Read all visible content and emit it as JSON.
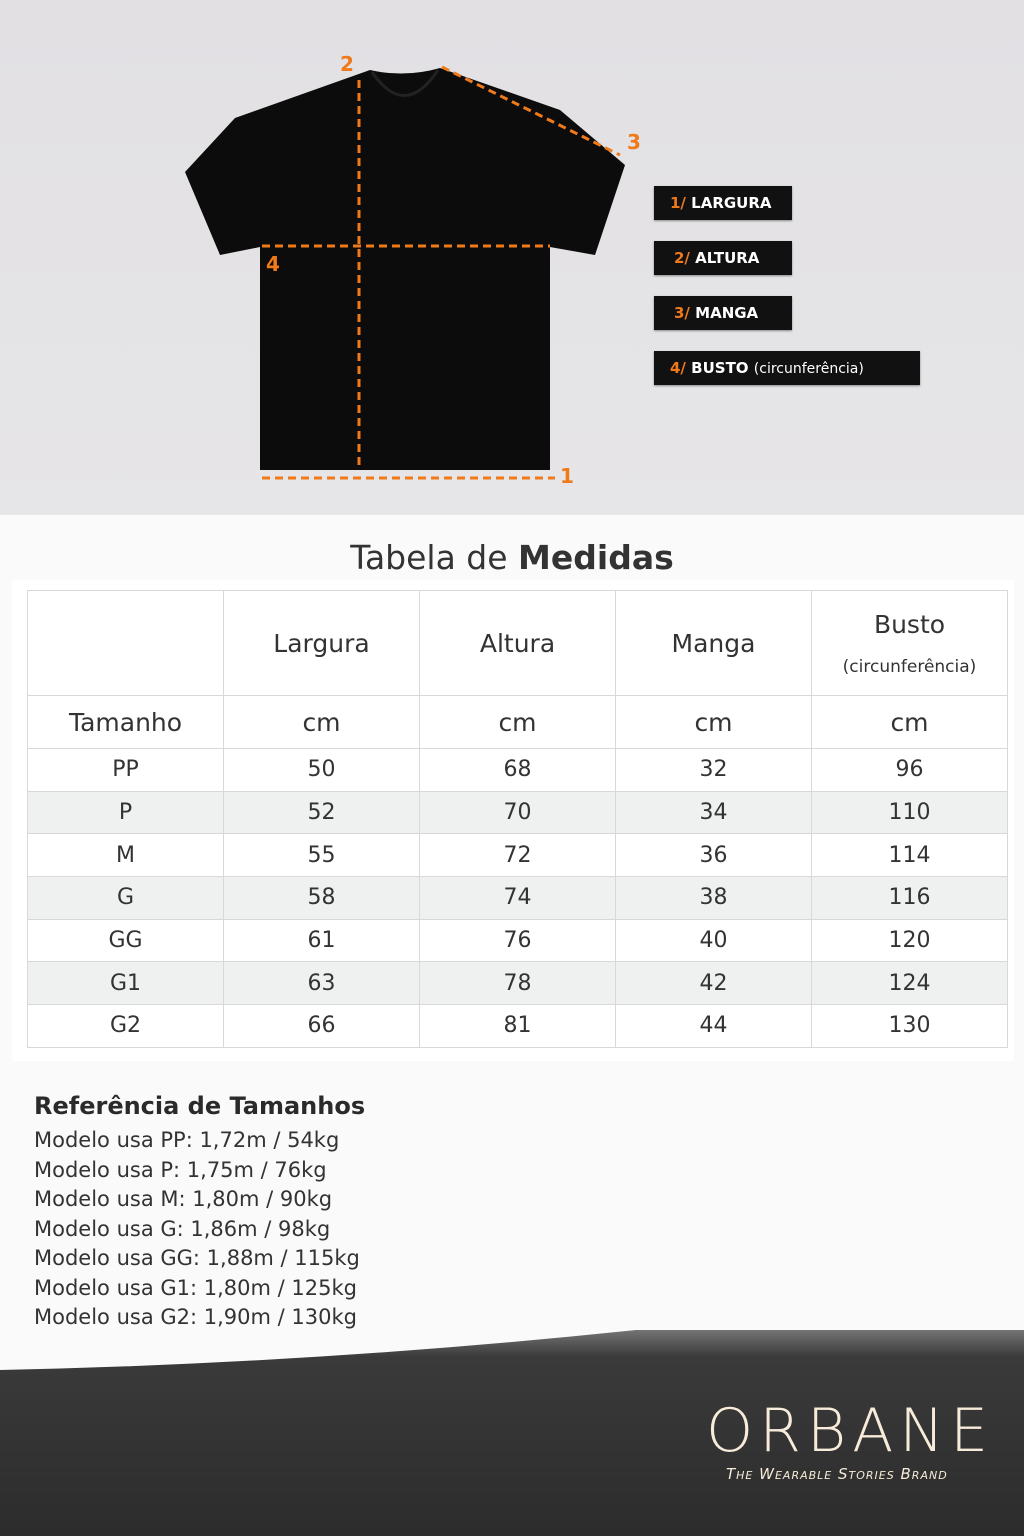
{
  "diagram": {
    "numbers": [
      "1",
      "2",
      "3",
      "4"
    ],
    "legend": [
      {
        "num": "1/",
        "label": "LARGURA",
        "sub": ""
      },
      {
        "num": "2/",
        "label": "ALTURA",
        "sub": ""
      },
      {
        "num": "3/",
        "label": "MANGA",
        "sub": ""
      },
      {
        "num": "4/",
        "label": "BUSTO",
        "sub": "(circunferência)"
      }
    ],
    "accent": "#f07a1a"
  },
  "table": {
    "title_light": "Tabela de ",
    "title_bold": "Medidas",
    "headers": [
      "",
      "Largura",
      "Altura",
      "Manga",
      "Busto"
    ],
    "busto_sub": "(circunferência)",
    "units": [
      "Tamanho",
      "cm",
      "cm",
      "cm",
      "cm"
    ],
    "rows": [
      [
        "PP",
        "50",
        "68",
        "32",
        "96"
      ],
      [
        "P",
        "52",
        "70",
        "34",
        "110"
      ],
      [
        "M",
        "55",
        "72",
        "36",
        "114"
      ],
      [
        "G",
        "58",
        "74",
        "38",
        "116"
      ],
      [
        "GG",
        "61",
        "76",
        "40",
        "120"
      ],
      [
        "G1",
        "63",
        "78",
        "42",
        "124"
      ],
      [
        "G2",
        "66",
        "81",
        "44",
        "130"
      ]
    ]
  },
  "reference": {
    "title": "Referência de Tamanhos",
    "items": [
      "Modelo usa PP: 1,72m / 54kg",
      "Modelo usa P: 1,75m / 76kg",
      "Modelo usa M: 1,80m / 90kg",
      "Modelo usa G: 1,86m / 98kg",
      "Modelo usa GG: 1,88m / 115kg",
      "Modelo usa G1: 1,80m / 125kg",
      "Modelo usa G2: 1,90m / 130kg"
    ]
  },
  "brand": {
    "logo": "ORBANE",
    "slogan": "The Wearable Stories Brand"
  }
}
